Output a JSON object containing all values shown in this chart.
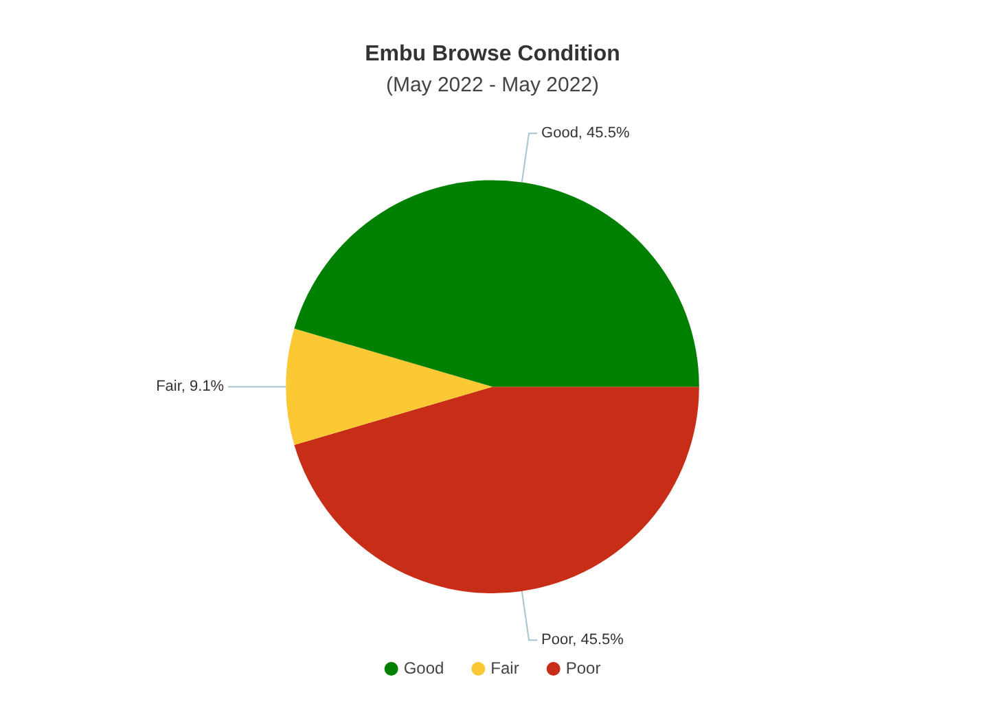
{
  "chart_data": {
    "type": "pie",
    "title": "Embu Browse Condition",
    "subtitle": "(May 2022 - May 2022)",
    "categories": [
      "Good",
      "Fair",
      "Poor"
    ],
    "values": [
      45.5,
      9.1,
      45.5
    ],
    "colors": [
      "#008000",
      "#fcc935",
      "#c82e17"
    ],
    "value_labels": [
      "Good, 45.5%",
      "Fair, 9.1%",
      "Poor, 45.5%"
    ],
    "legend": "bottom"
  }
}
